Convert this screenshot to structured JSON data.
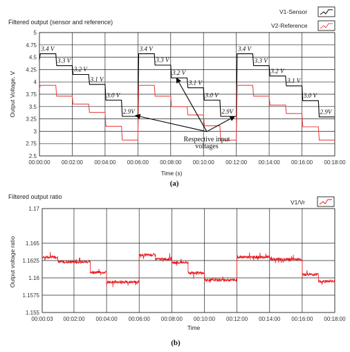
{
  "chart_data": [
    {
      "type": "line",
      "panel_label": "(a)",
      "title": "Filtered output (sensor and reference)",
      "xlabel": "Time (s)",
      "ylabel": "Output Voltage, V",
      "ylim": [
        2.5,
        5
      ],
      "yticks": [
        "5",
        "4.75",
        "4.5",
        "4.25",
        "4",
        "3.75",
        "3.5",
        "3.25",
        "3",
        "2.75",
        "2.5"
      ],
      "xlim_minutes": [
        0,
        18
      ],
      "xticks": [
        "00:00:00",
        "00:02:00",
        "00:04:00",
        "00:06:00",
        "00:08:00",
        "00:10:00",
        "00:12:00",
        "00:14:00",
        "00:16:00",
        "00:18:00"
      ],
      "grid": true,
      "legend_placement": "top-right",
      "series": [
        {
          "name": "V1-Sensor",
          "color": "#000000",
          "x_minutes": [
            0,
            0.05,
            1,
            1.05,
            2.0,
            2.05,
            3.0,
            3.05,
            4.0,
            4.05,
            5.0,
            5.05,
            6.0,
            6.05,
            7.0,
            7.05,
            8.0,
            8.05,
            9.0,
            9.05,
            10.0,
            10.05,
            11.0,
            11.05,
            12.0,
            12.05,
            13.0,
            13.05,
            14.0,
            14.05,
            15.0,
            15.05,
            16.0,
            16.05,
            17.0,
            17.05,
            18.0
          ],
          "values": [
            4.45,
            4.57,
            4.57,
            4.33,
            4.33,
            4.15,
            4.15,
            3.95,
            3.95,
            3.63,
            3.63,
            3.3,
            3.3,
            4.57,
            4.57,
            4.34,
            4.34,
            4.08,
            4.08,
            3.88,
            3.88,
            3.63,
            3.63,
            3.3,
            3.3,
            4.57,
            4.57,
            4.33,
            4.33,
            4.12,
            4.12,
            3.92,
            3.92,
            3.62,
            3.62,
            3.29,
            3.29
          ]
        },
        {
          "name": "V2-Reference",
          "color": "#e8474a",
          "x_minutes": [
            0,
            0.05,
            1,
            1.05,
            2.0,
            2.05,
            3.0,
            3.05,
            4.0,
            4.05,
            5.0,
            5.05,
            6.0,
            6.05,
            7.0,
            7.05,
            8.0,
            8.05,
            9.0,
            9.05,
            10.0,
            10.05,
            11.0,
            11.05,
            12.0,
            12.05,
            13.0,
            13.05,
            14.0,
            14.05,
            15.0,
            15.05,
            16.0,
            16.05,
            17.0,
            17.05,
            18.0
          ],
          "values": [
            3.86,
            3.93,
            3.93,
            3.71,
            3.71,
            3.55,
            3.55,
            3.38,
            3.38,
            3.1,
            3.1,
            2.82,
            2.82,
            3.93,
            3.93,
            3.71,
            3.71,
            3.5,
            3.5,
            3.33,
            3.33,
            3.11,
            3.11,
            2.82,
            2.82,
            3.93,
            3.93,
            3.71,
            3.71,
            3.53,
            3.53,
            3.36,
            3.36,
            3.09,
            3.09,
            2.82,
            2.82
          ]
        }
      ],
      "step_labels": [
        {
          "text": "3.4 V",
          "x_minutes": 0.1,
          "y": 4.63
        },
        {
          "text": "3.3 V",
          "x_minutes": 1.1,
          "y": 4.39
        },
        {
          "text": "3.2 V",
          "x_minutes": 2.1,
          "y": 4.21
        },
        {
          "text": "3.1 V",
          "x_minutes": 3.1,
          "y": 4.01
        },
        {
          "text": "3.0 V",
          "x_minutes": 4.1,
          "y": 3.69
        },
        {
          "text": "2.9V",
          "x_minutes": 5.1,
          "y": 3.36
        },
        {
          "text": "3.4 V",
          "x_minutes": 6.1,
          "y": 4.63
        },
        {
          "text": "3.3 V",
          "x_minutes": 7.1,
          "y": 4.4
        },
        {
          "text": "3.2 V",
          "x_minutes": 8.1,
          "y": 4.14
        },
        {
          "text": "3.1 V",
          "x_minutes": 9.1,
          "y": 3.94
        },
        {
          "text": "3.0 V",
          "x_minutes": 10.1,
          "y": 3.69
        },
        {
          "text": "2.9V",
          "x_minutes": 11.1,
          "y": 3.36
        },
        {
          "text": "3.4 V",
          "x_minutes": 12.1,
          "y": 4.63
        },
        {
          "text": "3.3 V",
          "x_minutes": 13.1,
          "y": 4.39
        },
        {
          "text": "3.2 V",
          "x_minutes": 14.1,
          "y": 4.18
        },
        {
          "text": "3.1 V",
          "x_minutes": 15.1,
          "y": 3.98
        },
        {
          "text": "3.0 V",
          "x_minutes": 16.1,
          "y": 3.68
        },
        {
          "text": "2.9V",
          "x_minutes": 17.1,
          "y": 3.35
        }
      ],
      "annotation": {
        "text_line1": "Respective input",
        "text_line2": "voltages",
        "x_minutes": 10.2,
        "y": 2.88,
        "arrow_targets": [
          {
            "x_minutes": 5.85,
            "y": 3.32
          },
          {
            "x_minutes": 8.35,
            "y": 4.08
          },
          {
            "x_minutes": 11.9,
            "y": 3.3
          }
        ]
      }
    },
    {
      "type": "line",
      "panel_label": "(b)",
      "title": "Filtered output ratio",
      "xlabel": "Time",
      "ylabel": "Output voltage ratio",
      "ylim": [
        1.155,
        1.17
      ],
      "yticks": [
        "1.17",
        "1.165",
        "1.1625",
        "1.16",
        "1.1575",
        "1.155"
      ],
      "ytick_values": [
        1.17,
        1.165,
        1.1625,
        1.16,
        1.1575,
        1.155
      ],
      "xlim_minutes": [
        0.05,
        18
      ],
      "xticks": [
        "00:00:03",
        "00:02:00",
        "00:04:00",
        "00:06:00",
        "00:08:00",
        "00:10:00",
        "00:12:00",
        "00:14:00",
        "00:16:00",
        "00:18:00"
      ],
      "grid": true,
      "legend_placement": "top-right",
      "series": [
        {
          "name": "V1/Vr",
          "color": "#e8151b",
          "segments": [
            {
              "x_start": 0.05,
              "x_end": 1.0,
              "level": 1.163
            },
            {
              "x_start": 1.0,
              "x_end": 3.0,
              "level": 1.1623
            },
            {
              "x_start": 3.0,
              "x_end": 4.0,
              "level": 1.1608
            },
            {
              "x_start": 4.0,
              "x_end": 6.0,
              "level": 1.1594
            },
            {
              "x_start": 6.0,
              "x_end": 7.0,
              "level": 1.1633
            },
            {
              "x_start": 7.0,
              "x_end": 8.0,
              "level": 1.1627
            },
            {
              "x_start": 8.0,
              "x_end": 9.0,
              "level": 1.1622
            },
            {
              "x_start": 9.0,
              "x_end": 10.0,
              "level": 1.1607
            },
            {
              "x_start": 10.0,
              "x_end": 12.0,
              "level": 1.1597
            },
            {
              "x_start": 12.0,
              "x_end": 14.0,
              "level": 1.163
            },
            {
              "x_start": 14.0,
              "x_end": 16.0,
              "level": 1.1627
            },
            {
              "x_start": 16.0,
              "x_end": 17.0,
              "level": 1.1605
            },
            {
              "x_start": 17.0,
              "x_end": 18.0,
              "level": 1.1595
            }
          ]
        }
      ]
    }
  ]
}
